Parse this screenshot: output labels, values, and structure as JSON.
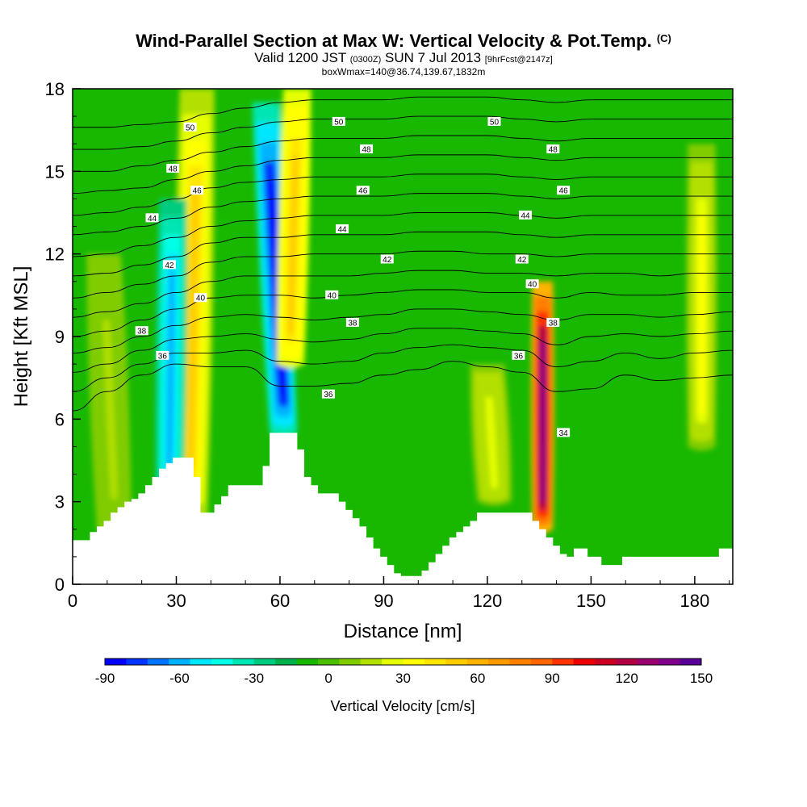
{
  "title": {
    "main": "Wind-Parallel Section at Max W: Vertical Velocity & Pot.Temp.",
    "copyright": "(C)",
    "valid_prefix": "Valid 1200 JST",
    "valid_utc": "(0300Z)",
    "valid_date": "SUN 7 Jul 2013",
    "forecast": "[9hrFcst@2147z]",
    "box_info": "boxWmax=140@36.74,139.67,1832m"
  },
  "chart_data": {
    "type": "heatmap",
    "xlabel": "Distance [nm]",
    "ylabel": "Height [Kft MSL]",
    "xlim": [
      0,
      191
    ],
    "ylim": [
      0,
      18
    ],
    "x_ticks": [
      0,
      30,
      60,
      90,
      120,
      150,
      180
    ],
    "y_ticks": [
      0,
      3,
      6,
      9,
      12,
      15,
      18
    ],
    "colorbar": {
      "title": "Vertical Velocity [cm/s]",
      "range": [
        -90,
        150
      ],
      "tick_values": [
        -90,
        -60,
        -30,
        0,
        30,
        60,
        90,
        120,
        150
      ],
      "colors": [
        "#0000ff",
        "#0033ff",
        "#0073ff",
        "#00b2ff",
        "#00e6ff",
        "#00ffe6",
        "#00e6b2",
        "#00cc80",
        "#00b24c",
        "#18b800",
        "#4cbf00",
        "#80cc00",
        "#b2e000",
        "#e6ff00",
        "#ffff00",
        "#ffe600",
        "#ffcc00",
        "#ffb200",
        "#ff9900",
        "#ff7f00",
        "#ff6600",
        "#ff3300",
        "#ee0000",
        "#cc0022",
        "#b20044",
        "#99006e",
        "#80008c",
        "#590099"
      ]
    },
    "velocity_features": [
      {
        "kind": "updraft",
        "x_center": 35,
        "x_top": 36,
        "x_bottom": 34,
        "half_width": 5,
        "top": 18,
        "bottom": 2.5,
        "peak_cm_s": 50
      },
      {
        "kind": "downdraft",
        "x_top": 29,
        "x_bottom": 28,
        "half_width": 4,
        "top": 14,
        "bottom": 3,
        "peak_cm_s": -60
      },
      {
        "kind": "downdraft",
        "x_top": 56,
        "x_bottom": 61,
        "half_width": 4,
        "top": 17.5,
        "bottom": 5.5,
        "peak_cm_s": -90
      },
      {
        "kind": "updraft",
        "x_top": 65,
        "x_bottom": 63,
        "half_width": 4,
        "top": 18,
        "bottom": 8,
        "peak_cm_s": 55
      },
      {
        "kind": "updraft",
        "x_top": 136,
        "x_bottom": 136,
        "half_width": 3,
        "top": 11,
        "bottom": 2,
        "peak_cm_s": 140
      },
      {
        "kind": "updraft",
        "x_top": 182,
        "x_bottom": 182,
        "half_width": 4,
        "top": 16,
        "bottom": 5,
        "peak_cm_s": 30
      },
      {
        "kind": "updraft",
        "x_top": 120,
        "x_bottom": 122,
        "half_width": 5,
        "top": 8,
        "bottom": 3,
        "peak_cm_s": 25
      },
      {
        "kind": "updraft",
        "x_top": 9,
        "x_bottom": 12,
        "half_width": 5,
        "top": 12,
        "bottom": 2,
        "peak_cm_s": 15
      }
    ],
    "terrain": {
      "distance_nm": [
        0,
        1,
        3,
        5,
        7,
        9,
        11,
        13,
        15,
        17,
        19,
        21,
        23,
        25,
        27,
        29,
        31,
        33,
        35,
        37,
        39,
        41,
        43,
        45,
        47,
        49,
        51,
        53,
        55,
        57,
        59,
        61,
        63,
        65,
        67,
        69,
        71,
        73,
        75,
        77,
        79,
        81,
        83,
        85,
        87,
        89,
        91,
        93,
        95,
        97,
        99,
        101,
        103,
        105,
        107,
        109,
        111,
        113,
        115,
        117,
        119,
        121,
        123,
        125,
        127,
        129,
        131,
        133,
        135,
        137,
        139,
        141,
        143,
        145,
        147,
        149,
        151,
        153,
        155,
        157,
        159,
        161,
        163,
        165,
        167,
        169,
        171,
        173,
        175,
        177,
        179,
        181,
        183,
        185,
        187,
        189,
        191
      ],
      "height_kft": [
        1.6,
        1.6,
        1.6,
        1.9,
        2.1,
        2.3,
        2.6,
        2.8,
        3.0,
        3.1,
        3.3,
        3.6,
        3.9,
        4.2,
        4.4,
        4.6,
        4.6,
        4.6,
        3.9,
        2.6,
        2.6,
        2.9,
        3.2,
        3.6,
        3.6,
        3.6,
        3.6,
        3.6,
        4.3,
        5.5,
        5.5,
        5.5,
        5.5,
        4.9,
        3.9,
        3.6,
        3.3,
        3.3,
        3.3,
        3.0,
        2.7,
        2.4,
        2.1,
        1.7,
        1.3,
        1.0,
        0.7,
        0.4,
        0.3,
        0.3,
        0.3,
        0.5,
        0.8,
        1.1,
        1.4,
        1.7,
        1.9,
        2.1,
        2.3,
        2.6,
        2.6,
        2.6,
        2.6,
        2.6,
        2.6,
        2.6,
        2.6,
        2.3,
        2.0,
        1.7,
        1.4,
        1.1,
        1.0,
        1.3,
        1.3,
        1.0,
        1.0,
        0.7,
        0.7,
        0.7,
        1.0,
        1.0,
        1.0,
        1.0,
        1.0,
        1.0,
        1.0,
        1.0,
        1.0,
        1.0,
        1.0,
        1.0,
        1.0,
        1.0,
        1.3,
        1.3,
        1.3
      ]
    },
    "isentropes_kft": {
      "x_nm": [
        0,
        10,
        20,
        30,
        40,
        50,
        60,
        70,
        80,
        90,
        100,
        110,
        120,
        130,
        140,
        150,
        160,
        170,
        180,
        191
      ],
      "lines": [
        [
          6.3,
          7.0,
          7.6,
          8.0,
          7.9,
          7.9,
          7.2,
          7.2,
          7.3,
          7.6,
          7.8,
          8.1,
          7.9,
          7.7,
          7.0,
          7.1,
          7.6,
          7.4,
          7.5,
          7.6
        ],
        [
          7.0,
          7.5,
          8.0,
          8.4,
          8.4,
          8.5,
          8.1,
          8.0,
          8.1,
          8.4,
          8.6,
          8.7,
          8.6,
          8.5,
          7.9,
          8.1,
          8.4,
          8.2,
          8.4,
          8.5
        ],
        [
          7.7,
          8.0,
          8.5,
          8.9,
          9.0,
          9.1,
          8.9,
          8.8,
          8.9,
          9.1,
          9.3,
          9.3,
          9.2,
          9.1,
          8.7,
          9.0,
          9.1,
          9.0,
          9.1,
          9.2
        ],
        [
          8.4,
          8.6,
          9.0,
          9.4,
          9.7,
          9.8,
          9.7,
          9.6,
          9.7,
          9.8,
          10.0,
          10.0,
          9.9,
          9.8,
          9.6,
          9.8,
          9.8,
          9.7,
          9.8,
          9.9
        ],
        [
          9.0,
          9.2,
          9.6,
          10.0,
          10.4,
          10.5,
          10.5,
          10.4,
          10.5,
          10.6,
          10.7,
          10.7,
          10.6,
          10.6,
          10.4,
          10.6,
          10.5,
          10.5,
          10.6,
          10.6
        ],
        [
          9.7,
          9.9,
          10.2,
          10.6,
          11.0,
          11.2,
          11.2,
          11.2,
          11.2,
          11.3,
          11.4,
          11.4,
          11.3,
          11.3,
          11.2,
          11.3,
          11.3,
          11.2,
          11.3,
          11.3
        ],
        [
          10.4,
          10.6,
          10.9,
          11.2,
          11.7,
          11.9,
          11.9,
          12.0,
          12.0,
          12.0,
          12.1,
          12.1,
          12.0,
          12.0,
          11.9,
          12.0,
          12.0,
          12.0,
          12.0,
          12.0
        ],
        [
          11.2,
          11.3,
          11.6,
          11.9,
          12.4,
          12.6,
          12.6,
          12.7,
          12.7,
          12.7,
          12.8,
          12.8,
          12.8,
          12.7,
          12.6,
          12.7,
          12.7,
          12.7,
          12.7,
          12.7
        ],
        [
          11.9,
          12.0,
          12.3,
          12.6,
          13.0,
          13.2,
          13.3,
          13.4,
          13.4,
          13.4,
          13.5,
          13.5,
          13.5,
          13.4,
          13.3,
          13.4,
          13.4,
          13.4,
          13.4,
          13.4
        ],
        [
          12.7,
          12.8,
          13.0,
          13.3,
          13.7,
          13.9,
          14.0,
          14.1,
          14.1,
          14.1,
          14.2,
          14.2,
          14.2,
          14.1,
          14.0,
          14.1,
          14.1,
          14.1,
          14.1,
          14.1
        ],
        [
          13.4,
          13.5,
          13.7,
          14.0,
          14.4,
          14.6,
          14.7,
          14.8,
          14.8,
          14.8,
          14.9,
          14.9,
          14.9,
          14.8,
          14.7,
          14.8,
          14.8,
          14.8,
          14.8,
          14.8
        ],
        [
          14.2,
          14.3,
          14.4,
          14.7,
          15.0,
          15.2,
          15.4,
          15.5,
          15.5,
          15.5,
          15.6,
          15.6,
          15.6,
          15.5,
          15.4,
          15.5,
          15.5,
          15.5,
          15.5,
          15.5
        ],
        [
          15.0,
          15.0,
          15.2,
          15.4,
          15.7,
          15.9,
          16.1,
          16.2,
          16.2,
          16.2,
          16.3,
          16.3,
          16.3,
          16.2,
          16.1,
          16.2,
          16.2,
          16.2,
          16.2,
          16.2
        ],
        [
          15.8,
          15.8,
          15.9,
          16.1,
          16.4,
          16.6,
          16.8,
          16.9,
          16.9,
          16.9,
          17.0,
          17.0,
          17.0,
          16.9,
          16.8,
          16.9,
          16.9,
          16.9,
          16.9,
          16.9
        ],
        [
          16.6,
          16.6,
          16.7,
          16.8,
          17.1,
          17.3,
          17.5,
          17.6,
          17.6,
          17.6,
          17.7,
          17.7,
          17.7,
          17.6,
          17.5,
          17.6,
          17.6,
          17.6,
          17.6,
          17.6
        ]
      ]
    },
    "contour_labels": [
      {
        "text": "50",
        "x": 34,
        "y": 16.6
      },
      {
        "text": "50",
        "x": 77,
        "y": 16.8
      },
      {
        "text": "50",
        "x": 122,
        "y": 16.8
      },
      {
        "text": "48",
        "x": 29,
        "y": 15.1
      },
      {
        "text": "48",
        "x": 85,
        "y": 15.8
      },
      {
        "text": "48",
        "x": 139,
        "y": 15.8
      },
      {
        "text": "46",
        "x": 36,
        "y": 14.3
      },
      {
        "text": "46",
        "x": 84,
        "y": 14.3
      },
      {
        "text": "46",
        "x": 142,
        "y": 14.3
      },
      {
        "text": "44",
        "x": 23,
        "y": 13.3
      },
      {
        "text": "44",
        "x": 78,
        "y": 12.9
      },
      {
        "text": "44",
        "x": 131,
        "y": 13.4
      },
      {
        "text": "42",
        "x": 28,
        "y": 11.6
      },
      {
        "text": "42",
        "x": 91,
        "y": 11.8
      },
      {
        "text": "42",
        "x": 130,
        "y": 11.8
      },
      {
        "text": "40",
        "x": 37,
        "y": 10.4
      },
      {
        "text": "40",
        "x": 75,
        "y": 10.5
      },
      {
        "text": "40",
        "x": 133,
        "y": 10.9
      },
      {
        "text": "38",
        "x": 20,
        "y": 9.2
      },
      {
        "text": "38",
        "x": 81,
        "y": 9.5
      },
      {
        "text": "38",
        "x": 139,
        "y": 9.5
      },
      {
        "text": "36",
        "x": 26,
        "y": 8.3
      },
      {
        "text": "36",
        "x": 129,
        "y": 8.3
      },
      {
        "text": "36",
        "x": 74,
        "y": 6.9
      },
      {
        "text": "34",
        "x": 142,
        "y": 5.5
      }
    ]
  }
}
